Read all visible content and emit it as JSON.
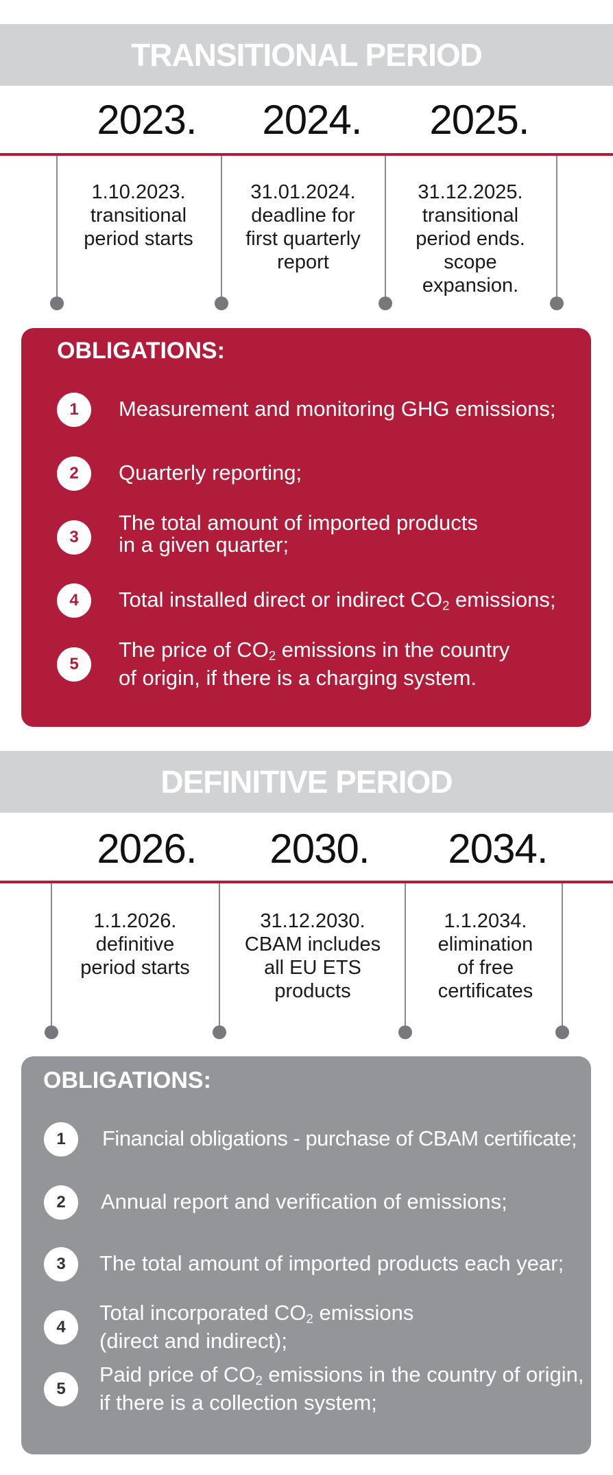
{
  "transitional": {
    "title": "TRANSITIONAL PERIOD",
    "years": [
      "2023.",
      "2024.",
      "2025."
    ],
    "events": [
      "1.10.2023.\ntransitional\nperiod starts",
      "31.01.2024.\ndeadline for\nfirst quarterly\nreport",
      "31.12.2025.\ntransitional\nperiod ends.\nscope\nexpansion."
    ],
    "obligations_title": "OBLIGATIONS:",
    "obligations": [
      {
        "num": "1",
        "text": "Measurement and monitoring GHG emissions;"
      },
      {
        "num": "2",
        "text": "Quarterly reporting;"
      },
      {
        "num": "3",
        "text": "The total amount of imported products\nin a given quarter;"
      },
      {
        "num": "4",
        "text_pre": "Total installed direct or indirect CO",
        "sub": "2",
        "text_post": " emissions;"
      },
      {
        "num": "5",
        "text_pre": "The price of CO",
        "sub": "2",
        "text_post": " emissions in the country\nof origin, if there is a charging system."
      }
    ]
  },
  "definitive": {
    "title": "DEFINITIVE PERIOD",
    "years": [
      "2026.",
      "2030.",
      "2034."
    ],
    "events": [
      "1.1.2026.\ndefinitive\nperiod starts",
      "31.12.2030.\nCBAM includes\nall EU ETS\nproducts",
      "1.1.2034.\nelimination\nof free\ncertificates"
    ],
    "obligations_title": "OBLIGATIONS:",
    "obligations": [
      {
        "num": "1",
        "text": "Financial obligations - purchase of CBAM certificate;"
      },
      {
        "num": "2",
        "text": "Annual report and verification of emissions;"
      },
      {
        "num": "3",
        "text": "The total amount of imported products each year;"
      },
      {
        "num": "4",
        "text_pre": "Total incorporated CO",
        "sub": "2",
        "text_post": " emissions\n(direct and indirect);"
      },
      {
        "num": "5",
        "text_pre": "Paid price of CO",
        "sub": "2",
        "text_post": " emissions in the country of origin,\nif there is a collection system;"
      }
    ]
  },
  "colors": {
    "accent": "#b01c3a",
    "banner": "#d1d2d4",
    "grey_panel": "#939598",
    "timeline": "#77787b"
  }
}
